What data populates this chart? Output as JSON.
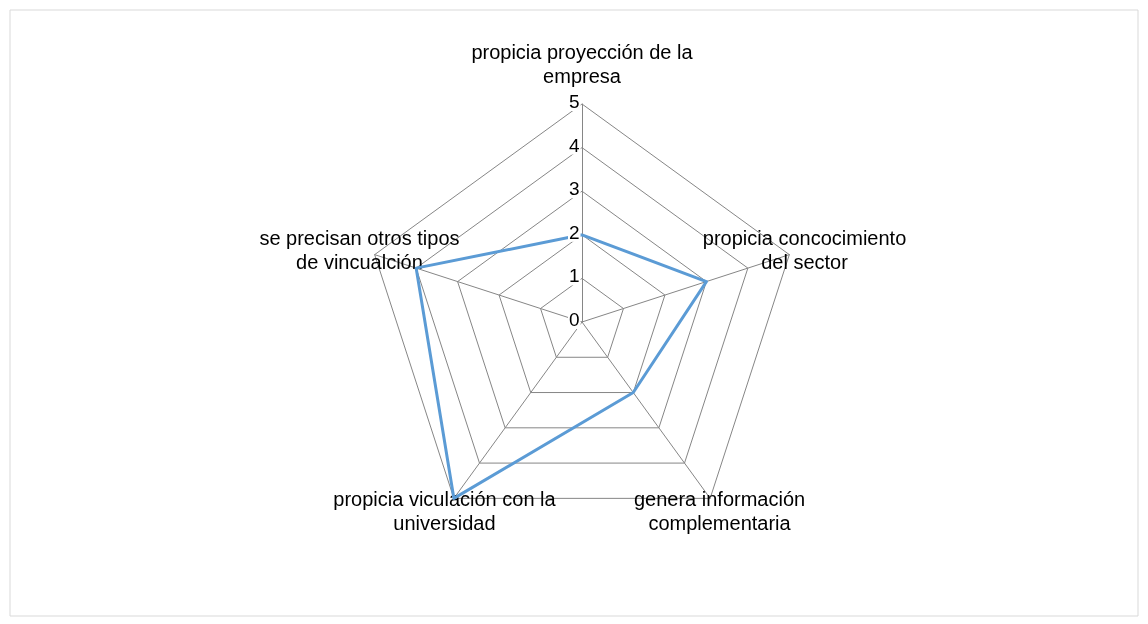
{
  "chart_data": {
    "type": "radar",
    "categories": [
      "propicia proyección de la empresa",
      "propicia concocimiento del sector",
      "genera información complementaria",
      "propicia viculación con la universidad",
      "se precisan otros tipos de vincualción"
    ],
    "series": [
      {
        "color": "#5b9bd5",
        "values": [
          2,
          3,
          2,
          5,
          4
        ]
      }
    ],
    "ylim": [
      0,
      5
    ],
    "yticks": [
      0,
      1,
      2,
      3,
      4,
      5
    ],
    "grid": true,
    "marker": "none",
    "line_style": "solid"
  }
}
